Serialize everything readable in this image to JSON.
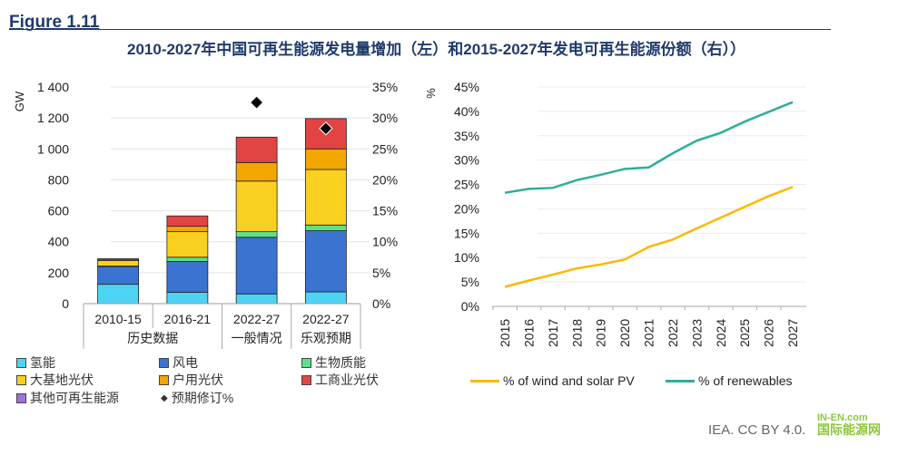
{
  "figure_label": "Figure 1.11",
  "title": "2010-2027年中国可再生能源发电量增加（左）和2015-2027年发电可再生能源份额（右））",
  "credit": "IEA. CC BY 4.0.",
  "watermark": {
    "top": "IN-EN.com",
    "bottom": "国际能源网"
  },
  "chart_data": [
    {
      "type": "bar",
      "stacked": true,
      "ylabel": "GW",
      "ylim": [
        0,
        1400
      ],
      "yticks": [
        "0",
        "200",
        "400",
        "600",
        "800",
        "1 000",
        "1 200",
        "1 400"
      ],
      "y2lim": [
        0,
        35
      ],
      "y2ticks": [
        "0%",
        "5%",
        "10%",
        "15%",
        "20%",
        "25%",
        "30%",
        "35%"
      ],
      "categories": [
        "2010-15",
        "2016-21",
        "2022-27",
        "2022-27"
      ],
      "groups": [
        {
          "label": "历史数据",
          "span": 2
        },
        {
          "label": "一般情况",
          "span": 1
        },
        {
          "label": "乐观预期",
          "span": 1
        }
      ],
      "series": [
        {
          "name": "氢能",
          "color": "#4dd4f5",
          "values": [
            125,
            73,
            63,
            76
          ]
        },
        {
          "name": "风电",
          "color": "#3b73d1",
          "values": [
            115,
            200,
            366,
            395
          ]
        },
        {
          "name": "生物质能",
          "color": "#5fe08a",
          "values": [
            3,
            27,
            36,
            37
          ]
        },
        {
          "name": "大基地光伏",
          "color": "#fad020",
          "values": [
            35,
            165,
            327,
            359
          ]
        },
        {
          "name": "户用光伏",
          "color": "#f2a600",
          "values": [
            8,
            35,
            120,
            133
          ]
        },
        {
          "name": "工商业光伏",
          "color": "#e24444",
          "values": [
            4,
            67,
            164,
            196
          ]
        },
        {
          "name": "其他可再生能源",
          "color": "#a070e0",
          "values": [
            0,
            0,
            0,
            0
          ]
        }
      ],
      "markers": {
        "name": "预期修订%",
        "axis": "right",
        "values": [
          null,
          null,
          32.5,
          28.3
        ]
      },
      "legend_placement": "bottom"
    },
    {
      "type": "line",
      "ylabel": "%",
      "ylim": [
        0,
        45
      ],
      "yticks": [
        "0%",
        "5%",
        "10%",
        "15%",
        "20%",
        "25%",
        "30%",
        "35%",
        "40%",
        "45%"
      ],
      "x": [
        "2015",
        "2016",
        "2017",
        "2018",
        "2019",
        "2020",
        "2021",
        "2022",
        "2023",
        "2024",
        "2025",
        "2026",
        "2027"
      ],
      "series": [
        {
          "name": "% of wind and solar PV",
          "color": "#fbb800",
          "values": [
            4.0,
            5.3,
            6.5,
            7.8,
            8.6,
            9.6,
            12.2,
            13.7,
            16.0,
            18.2,
            20.4,
            22.6,
            24.5
          ]
        },
        {
          "name": "% of renewables",
          "color": "#2fae9a",
          "values": [
            23.3,
            24.1,
            24.3,
            25.9,
            27.0,
            28.2,
            28.5,
            31.4,
            34.0,
            35.6,
            37.9,
            39.9,
            41.9
          ]
        }
      ],
      "legend_placement": "bottom"
    }
  ]
}
